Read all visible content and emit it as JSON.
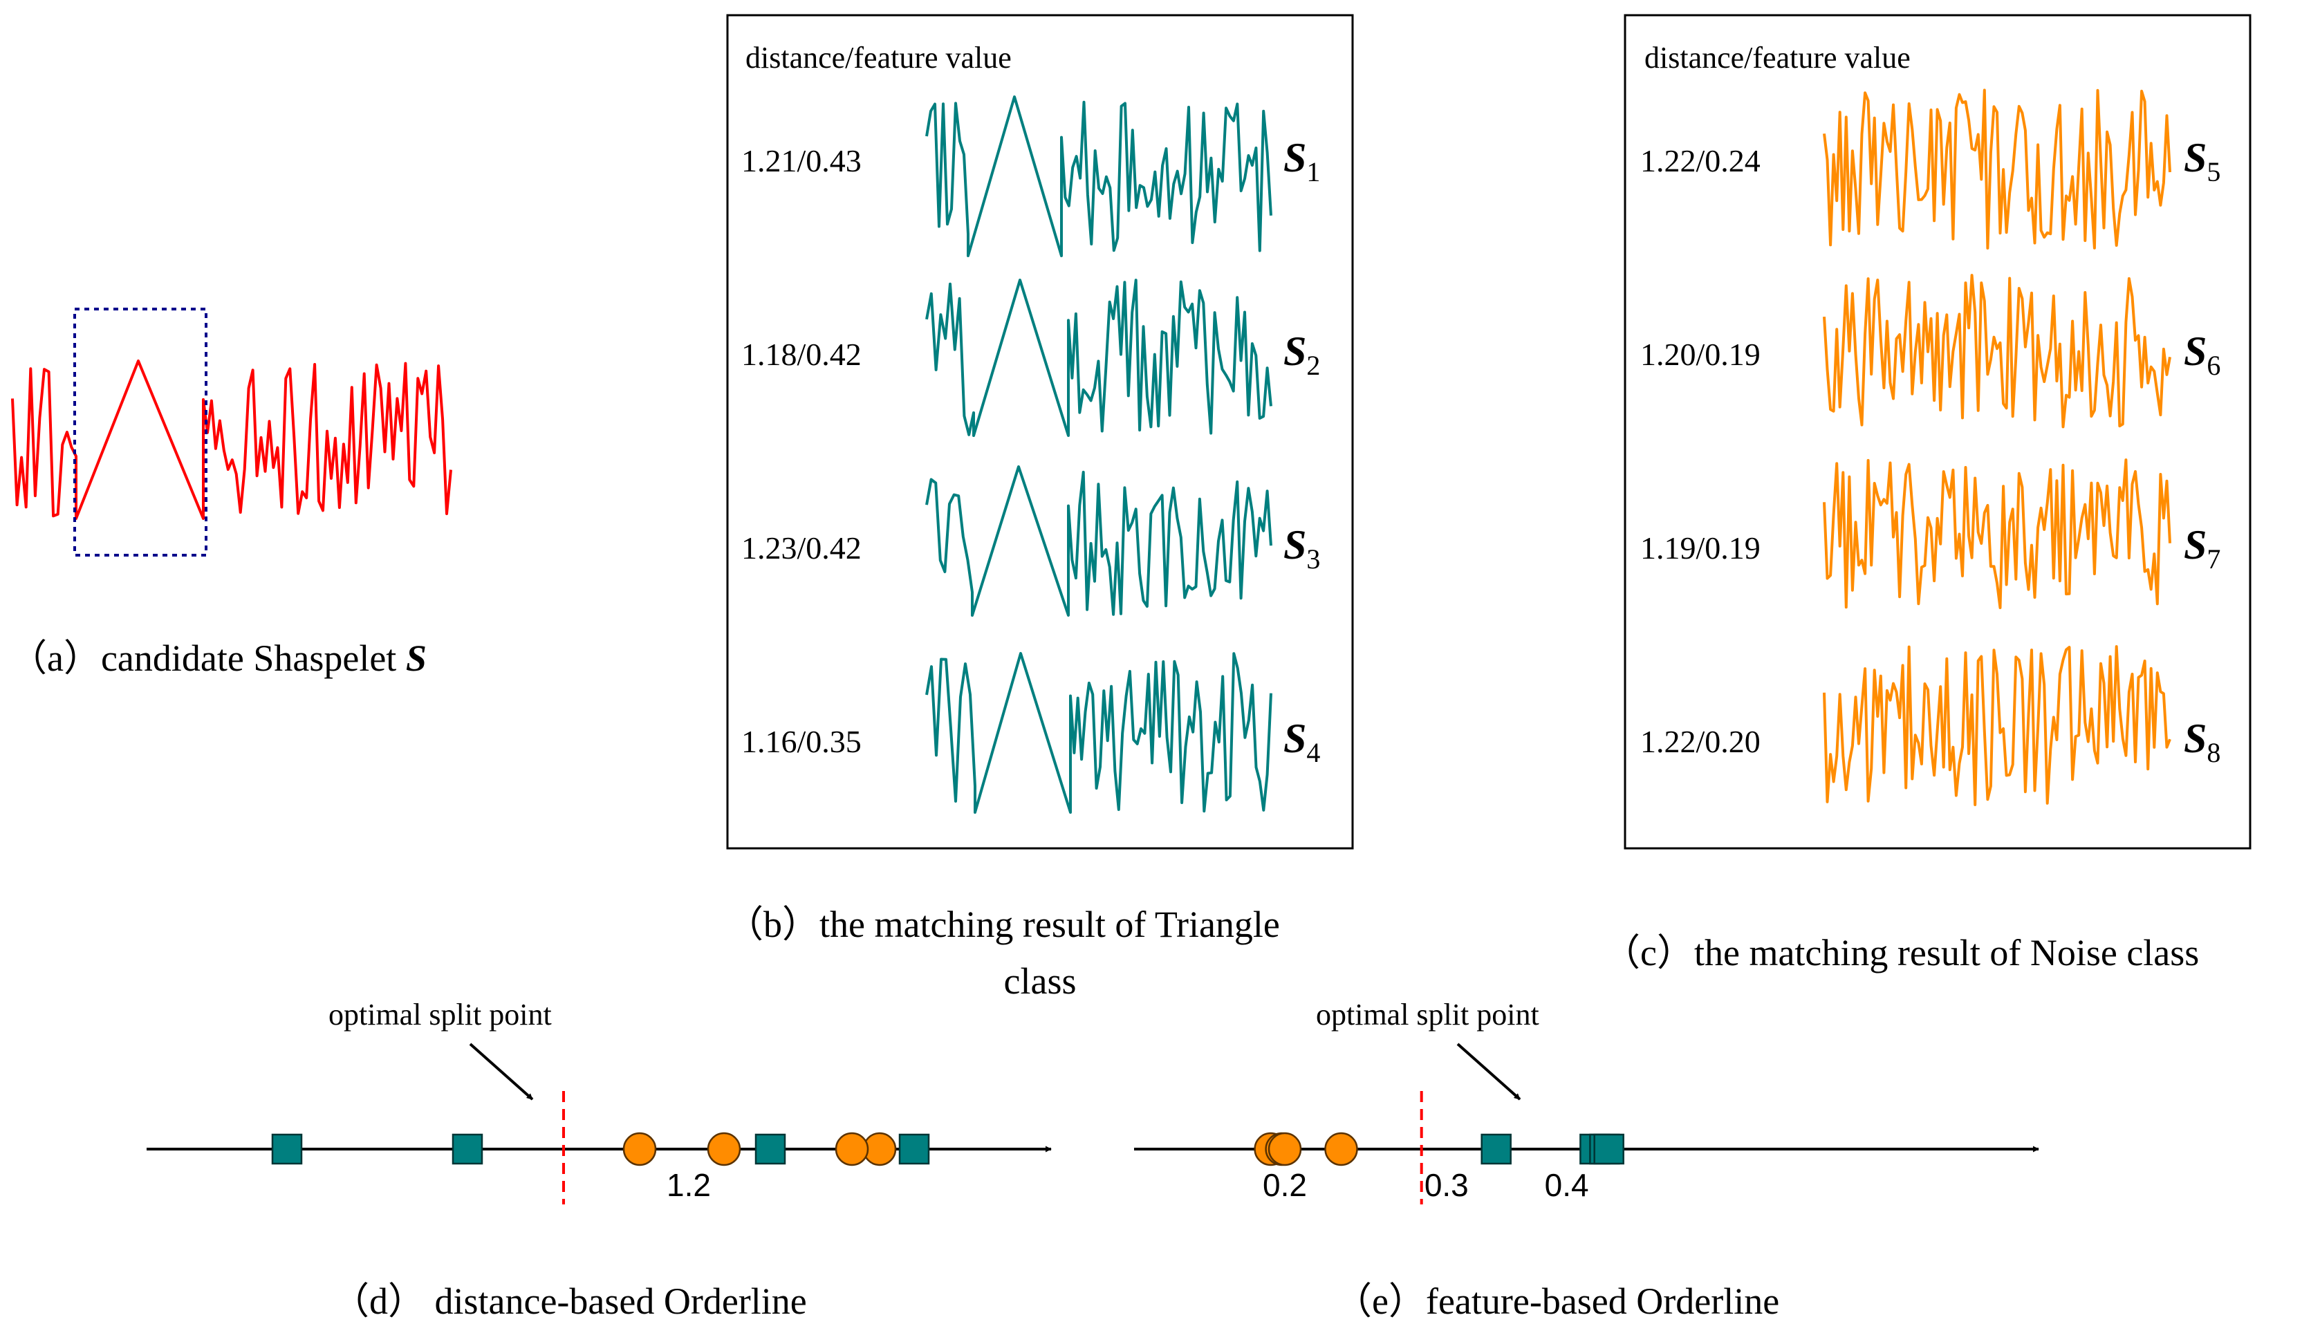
{
  "colors": {
    "candidate": "#ff0000",
    "triangle": "#007f7f",
    "noise": "#ff8c00",
    "box_dotted": "#00008b",
    "split_line": "#ff0000",
    "axis": "#000000"
  },
  "panel_a": {
    "caption_prefix": "（a）candidate Shaspelet ",
    "caption_symbol": "S"
  },
  "panel_b": {
    "header": "distance/feature value",
    "caption_line1": "（b）the matching result of Triangle",
    "caption_line2": "class",
    "rows": [
      {
        "value": "1.21/0.43",
        "symbol": "S",
        "index": "1"
      },
      {
        "value": "1.18/0.42",
        "symbol": "S",
        "index": "2"
      },
      {
        "value": "1.23/0.42",
        "symbol": "S",
        "index": "3"
      },
      {
        "value": "1.16/0.35",
        "symbol": "S",
        "index": "4"
      }
    ]
  },
  "panel_c": {
    "header": "distance/feature value",
    "caption": "（c）the matching result of Noise class",
    "rows": [
      {
        "value": "1.22/0.24",
        "symbol": "S",
        "index": "5"
      },
      {
        "value": "1.20/0.19",
        "symbol": "S",
        "index": "6"
      },
      {
        "value": "1.19/0.19",
        "symbol": "S",
        "index": "7"
      },
      {
        "value": "1.22/0.20",
        "symbol": "S",
        "index": "8"
      }
    ]
  },
  "panel_d": {
    "annotation": "optimal split point",
    "caption": "（d） distance-based Orderline",
    "tick_label": "1.2",
    "tick_value": 1.2,
    "split_value": 1.195,
    "triangle_values": [
      1.16,
      1.18,
      1.21,
      1.23
    ],
    "noise_values": [
      1.19,
      1.2,
      1.22,
      1.22
    ]
  },
  "panel_e": {
    "annotation": "optimal split point",
    "caption": "（e）feature-based Orderline",
    "tick_labels": [
      "0.2",
      "0.3",
      "0.4"
    ],
    "tick_values": [
      0.2,
      0.3,
      0.4
    ],
    "split_value": 0.297,
    "triangle_values": [
      0.35,
      0.42,
      0.42,
      0.43
    ],
    "noise_values": [
      0.19,
      0.19,
      0.2,
      0.24
    ]
  }
}
